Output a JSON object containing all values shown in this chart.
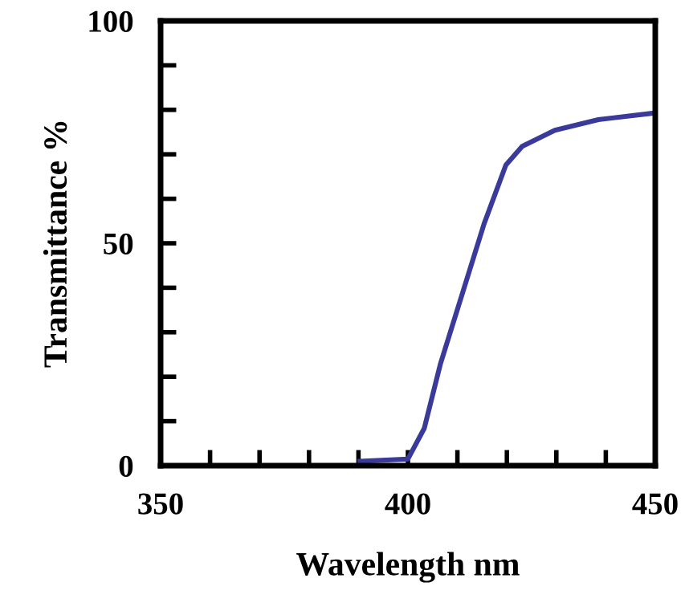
{
  "chart_data": {
    "type": "line",
    "xlabel": "Wavelength nm",
    "ylabel": "Transmittance %",
    "xlim": [
      350,
      450
    ],
    "ylim": [
      0,
      100
    ],
    "xticks": [
      350,
      {
        "value": 360,
        "label": null
      },
      {
        "value": 370,
        "label": null
      },
      {
        "value": 380,
        "label": null
      },
      {
        "value": 390,
        "label": null
      },
      400,
      {
        "value": 410,
        "label": null
      },
      {
        "value": 420,
        "label": null
      },
      {
        "value": 430,
        "label": null
      },
      {
        "value": 440,
        "label": null
      },
      450
    ],
    "yticks": [
      0,
      {
        "value": 10,
        "label": null
      },
      {
        "value": 20,
        "label": null
      },
      {
        "value": 30,
        "label": null
      },
      {
        "value": 40,
        "label": null
      },
      50,
      {
        "value": 60,
        "label": null
      },
      {
        "value": 70,
        "label": null
      },
      {
        "value": 80,
        "label": null
      },
      {
        "value": 90,
        "label": null
      },
      100
    ],
    "grid": false,
    "legend": false,
    "marker": "none",
    "line_style": "solid",
    "series": [
      {
        "color": "#3a3a9a",
        "x": [
          390.3,
          400,
          403.3,
          406.6,
          411,
          415.4,
          419.8,
          423.1,
          429.7,
          438.5,
          450
        ],
        "values": [
          1,
          1.5,
          8.4,
          23,
          38.7,
          54.4,
          67.6,
          71.8,
          75.4,
          77.8,
          79.3
        ]
      }
    ]
  }
}
